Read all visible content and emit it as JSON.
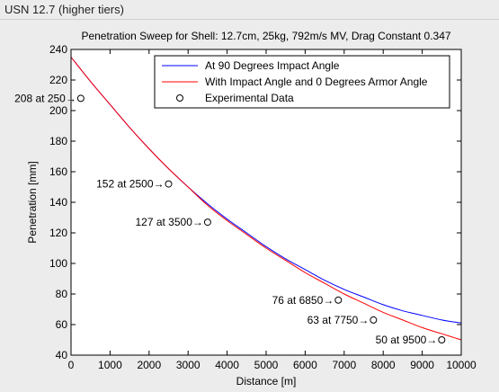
{
  "header": {
    "title": "USN 12.7 (higher tiers)"
  },
  "chart_data": {
    "type": "line",
    "title": "Penetration Sweep for Shell: 12.7cm, 25kg, 792m/s MV, Drag Constant 0.347",
    "xlabel": "Distance [m]",
    "ylabel": "Penetration [mm]",
    "xlim": [
      0,
      10000
    ],
    "ylim": [
      40,
      240
    ],
    "xticks": [
      0,
      1000,
      2000,
      3000,
      4000,
      5000,
      6000,
      7000,
      8000,
      9000,
      10000
    ],
    "yticks": [
      40,
      60,
      80,
      100,
      120,
      140,
      160,
      180,
      200,
      220,
      240
    ],
    "grid": false,
    "legend_position": "top-right",
    "series": [
      {
        "name": "At 90 Degrees Impact Angle",
        "color": "#0000ff",
        "x": [
          0,
          500,
          1000,
          1500,
          2000,
          2500,
          3000,
          3500,
          4000,
          4500,
          5000,
          5500,
          6000,
          6500,
          7000,
          7500,
          8000,
          8500,
          9000,
          9500,
          10000
        ],
        "y": [
          235,
          219,
          204,
          189,
          175,
          162,
          150,
          139,
          129,
          120,
          111,
          103,
          96,
          89,
          83,
          78,
          73,
          69,
          66,
          63,
          61
        ]
      },
      {
        "name": "With Impact Angle and 0 Degrees Armor Angle",
        "color": "#ff0000",
        "x": [
          0,
          500,
          1000,
          1500,
          2000,
          2500,
          3000,
          3500,
          4000,
          4500,
          5000,
          5500,
          6000,
          6500,
          7000,
          7500,
          8000,
          8500,
          9000,
          9500,
          10000
        ],
        "y": [
          235,
          219,
          204,
          189,
          175,
          162,
          150,
          138,
          128,
          119,
          110,
          102,
          94,
          87,
          80,
          74,
          68,
          63,
          58,
          54,
          50
        ]
      }
    ],
    "experimental": {
      "name": "Experimental Data",
      "points": [
        {
          "x": 250,
          "y": 208,
          "label": "208 at 250→"
        },
        {
          "x": 2500,
          "y": 152,
          "label": "152 at 2500→"
        },
        {
          "x": 3500,
          "y": 127,
          "label": "127 at 3500→"
        },
        {
          "x": 6850,
          "y": 76,
          "label": "76 at 6850→"
        },
        {
          "x": 7750,
          "y": 63,
          "label": "63 at 7750→"
        },
        {
          "x": 9500,
          "y": 50,
          "label": "50 at 9500→"
        }
      ]
    }
  }
}
